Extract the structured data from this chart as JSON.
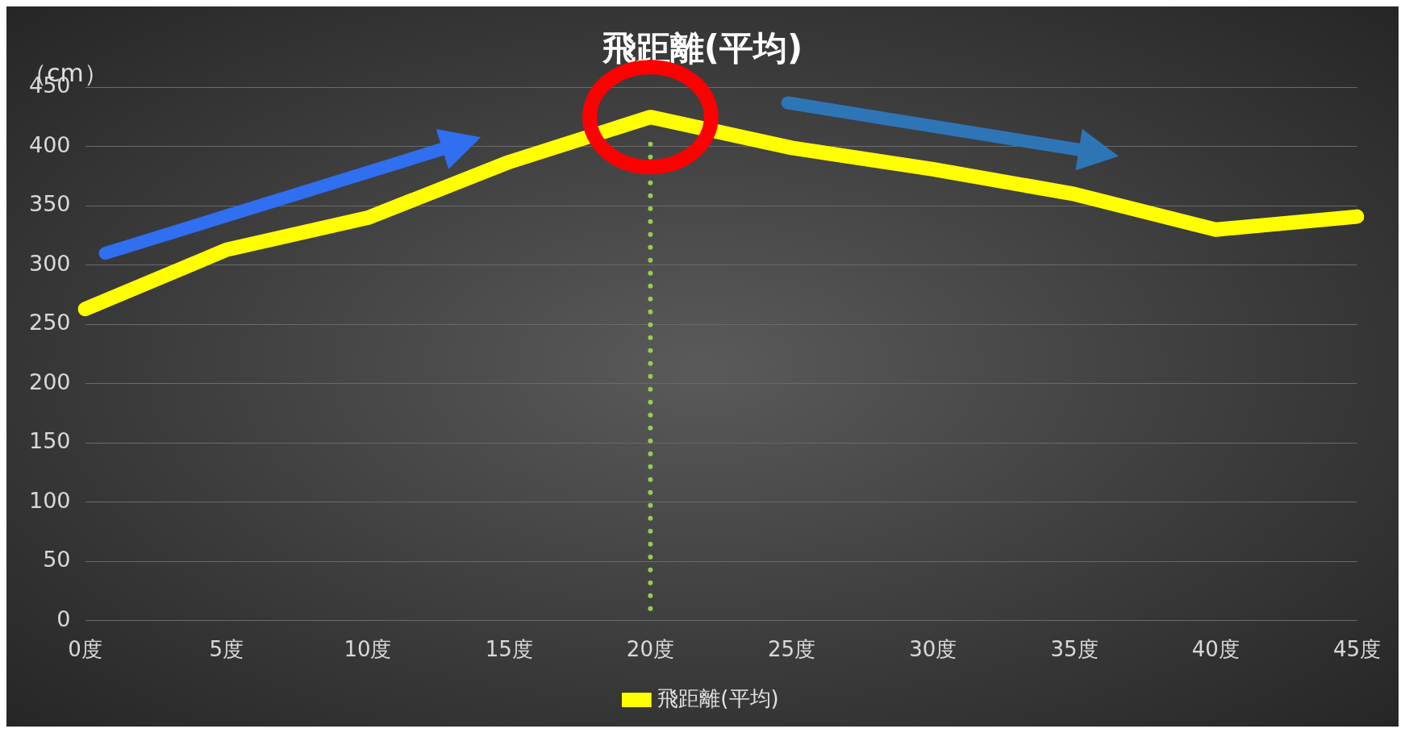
{
  "chart_data": {
    "type": "line",
    "title": "飛距離(平均)",
    "ylabel": "（cm）",
    "categories": [
      "0度",
      "5度",
      "10度",
      "15度",
      "20度",
      "25度",
      "30度",
      "35度",
      "40度",
      "45度"
    ],
    "series": [
      {
        "name": "飛距離(平均)",
        "color": "#ffff00",
        "values": [
          263,
          313,
          340,
          387,
          425,
          399,
          381,
          360,
          330,
          341
        ]
      }
    ],
    "ylim": [
      0,
      450
    ],
    "yticks": [
      0,
      50,
      100,
      150,
      200,
      250,
      300,
      350,
      400,
      450
    ],
    "grid": "y",
    "legend": "bottom",
    "marker": "none",
    "line_style": "solid",
    "ref_lines": [
      {
        "axis": "x",
        "value": "20度",
        "color": "#92d050",
        "line_style": "dotted"
      }
    ]
  }
}
